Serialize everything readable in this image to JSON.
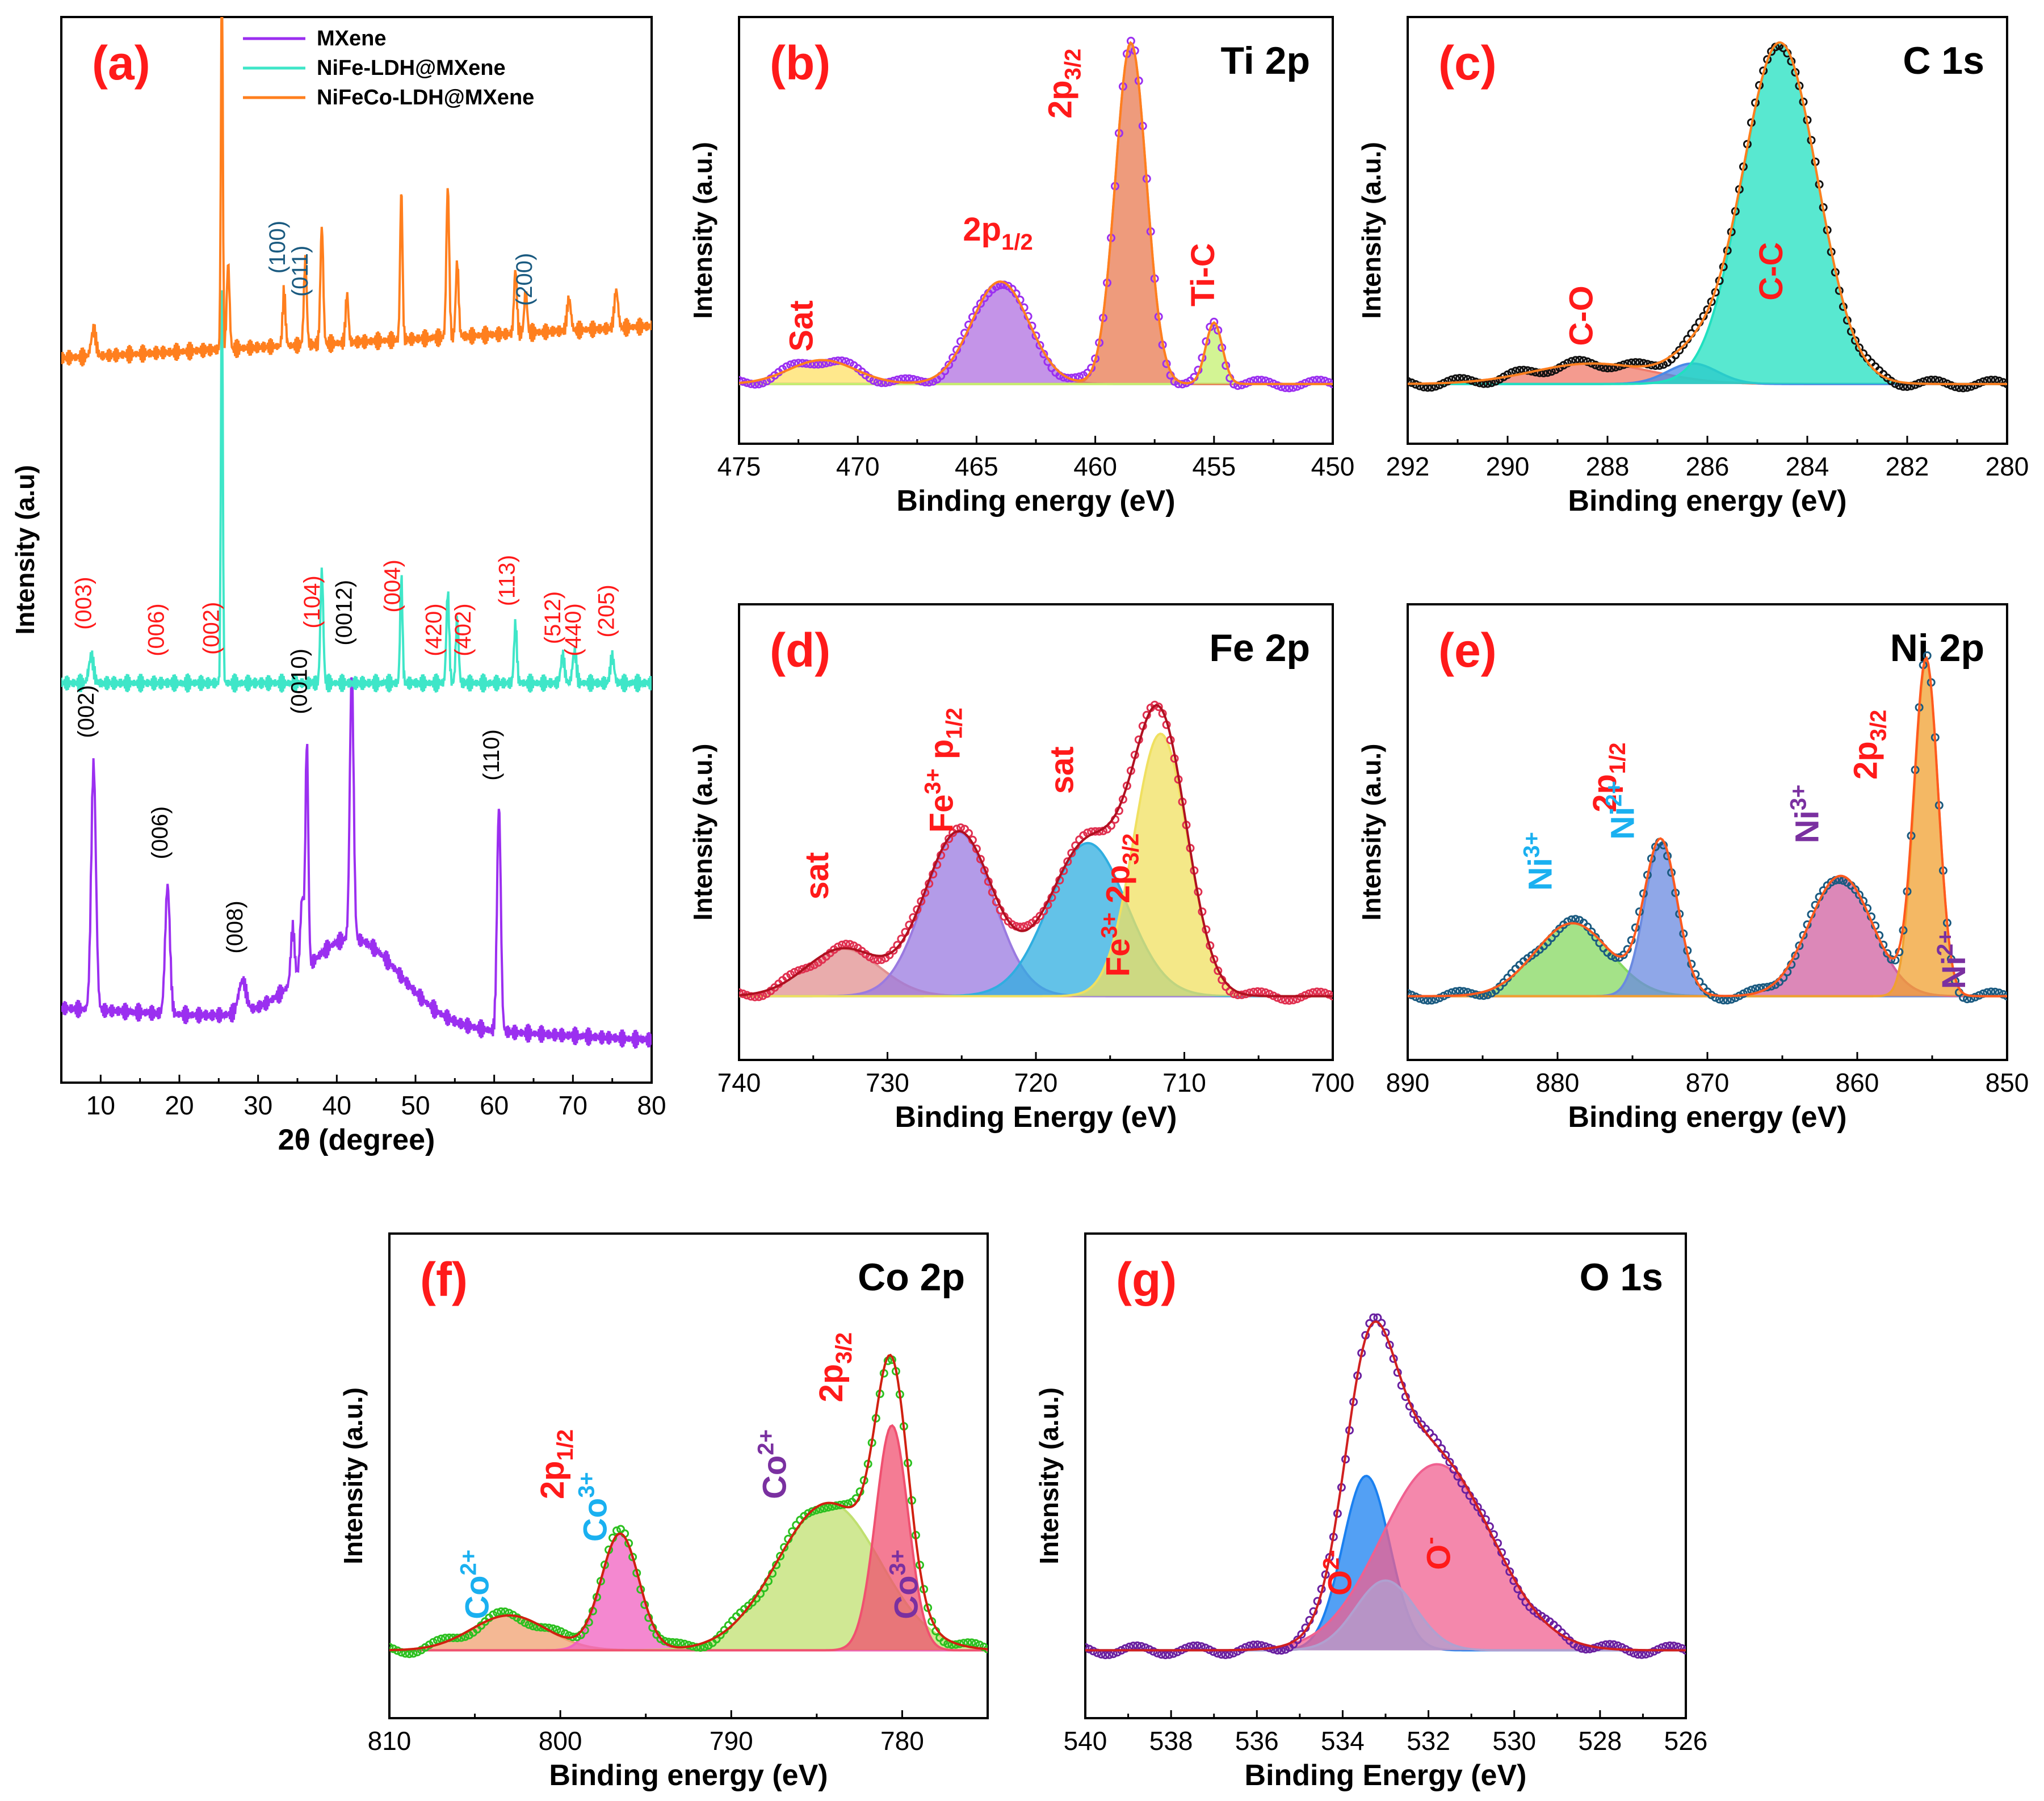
{
  "chart_data": [
    {
      "id": "a",
      "type": "line",
      "panel_label": "(a)",
      "xlabel": "2θ (degree)",
      "ylabel": "Intensity (a.u)",
      "xlim": [
        5,
        80
      ],
      "xticks": [
        "10",
        "20",
        "30",
        "40",
        "50",
        "60",
        "70",
        "80"
      ],
      "ylim": [
        0,
        10
      ],
      "legend": [
        {
          "name": "MXene",
          "color": "#9b2ff0"
        },
        {
          "name": "NiFe-LDH@MXene",
          "color": "#3fe6c8"
        },
        {
          "name": "NiFeCo-LDH@MXene",
          "color": "#ff7f1e"
        }
      ],
      "series": [
        {
          "name": "MXene",
          "color": "#9b2ff0",
          "baseline": 0.7,
          "slope": -0.004,
          "bump": {
            "x": 42,
            "h": 0.8,
            "w": 6
          },
          "peaks": [
            [
              9.1,
              2.3,
              0.5
            ],
            [
              18.5,
              1.2,
              0.5
            ],
            [
              28,
              0.3,
              0.8
            ],
            [
              34.4,
              0.5,
              0.4
            ],
            [
              35.6,
              0.7,
              0.4
            ],
            [
              36.2,
              2.1,
              0.3
            ],
            [
              41.9,
              2.5,
              0.4
            ],
            [
              60.6,
              2.1,
              0.4
            ]
          ],
          "labels": [
            {
              "x": 9.1,
              "text": "(002)"
            },
            {
              "x": 18.5,
              "text": "(006)"
            },
            {
              "x": 28.0,
              "text": "(008)"
            },
            {
              "x": 36.2,
              "text": "(0010)"
            },
            {
              "x": 41.9,
              "text": "(0012)"
            },
            {
              "x": 60.6,
              "text": "(110)"
            }
          ]
        },
        {
          "name": "NiFe-LDH@MXene",
          "color": "#3fe6c8",
          "baseline": 3.75,
          "slope": 0,
          "bump": null,
          "peaks": [
            [
              8.8,
              0.25,
              0.5
            ],
            [
              25.4,
              3.8,
              0.2
            ],
            [
              38.1,
              1.05,
              0.3
            ],
            [
              48.2,
              1.0,
              0.25
            ],
            [
              54.1,
              0.85,
              0.3
            ],
            [
              55.3,
              0.6,
              0.3
            ],
            [
              62.7,
              0.55,
              0.3
            ],
            [
              68.7,
              0.25,
              0.4
            ],
            [
              70.2,
              0.3,
              0.4
            ],
            [
              75.0,
              0.25,
              0.4
            ]
          ],
          "labels": [
            {
              "x": 8.8,
              "text": "(003)"
            },
            {
              "x": 18.0,
              "text": "(006)"
            },
            {
              "x": 25.0,
              "text": "(002)"
            },
            {
              "x": 37.8,
              "text": "(104)"
            },
            {
              "x": 48.0,
              "text": "(004)"
            },
            {
              "x": 53.3,
              "text": "(420)"
            },
            {
              "x": 57.0,
              "text": "(402)"
            },
            {
              "x": 62.6,
              "text": "(113)"
            },
            {
              "x": 68.4,
              "text": "(512)"
            },
            {
              "x": 71.0,
              "text": "(440)"
            },
            {
              "x": 75.2,
              "text": "(205)"
            }
          ]
        },
        {
          "name": "NiFeCo-LDH@MXene",
          "color": "#ff7f1e",
          "baseline": 6.8,
          "slope": 0.004,
          "bump": null,
          "peaks": [
            [
              9.1,
              0.25,
              0.5
            ],
            [
              25.4,
              3.5,
              0.2
            ],
            [
              26.2,
              0.8,
              0.3
            ],
            [
              33.3,
              0.5,
              0.3
            ],
            [
              36.0,
              0.8,
              0.3
            ],
            [
              38.1,
              1.1,
              0.3
            ],
            [
              41.3,
              0.45,
              0.3
            ],
            [
              48.2,
              1.4,
              0.25
            ],
            [
              54.1,
              1.4,
              0.3
            ],
            [
              55.3,
              0.7,
              0.3
            ],
            [
              62.7,
              0.6,
              0.3
            ],
            [
              64.0,
              0.4,
              0.3
            ],
            [
              69.5,
              0.3,
              0.4
            ],
            [
              75.5,
              0.35,
              0.4
            ]
          ],
          "labels": [
            {
              "x": 33.4,
              "text": "(100)"
            },
            {
              "x": 36.3,
              "text": "(011)"
            },
            {
              "x": 64.8,
              "text": "(200)"
            }
          ]
        }
      ]
    },
    {
      "id": "b",
      "type": "line",
      "panel_label": "(b)",
      "title": "Ti 2p",
      "xlabel": "Binding energy (eV)",
      "ylabel": "Intensity (a.u.)",
      "xlim": [
        475,
        450
      ],
      "xticks": [
        "475",
        "470",
        "465",
        "460",
        "455",
        "450"
      ],
      "baseline": 0.0,
      "data_color": "#9b2ff0",
      "envelope_color": "#ff7f1e",
      "components": [
        {
          "center": 471.5,
          "height": 0.07,
          "width": 1.4,
          "fill": "#ffe066"
        },
        {
          "center": 464.0,
          "height": 0.3,
          "width": 1.2,
          "fill": "#b070e0"
        },
        {
          "center": 458.5,
          "height": 1.0,
          "width": 0.65,
          "fill": "#e87a50"
        },
        {
          "center": 455.0,
          "height": 0.18,
          "width": 0.35,
          "fill": "#c4f070"
        }
      ],
      "annotations": [
        {
          "text": "Sat",
          "x": 471.9,
          "y": 0.17,
          "color": "#ff1a1a",
          "rotate": -90
        },
        {
          "text": "Ti-C",
          "x": 455.0,
          "y": 0.32,
          "color": "#ff1a1a",
          "rotate": -90
        }
      ],
      "subscripts": [
        {
          "main": "2p",
          "sub": "1/2",
          "x": 464.1,
          "y": 0.42,
          "color": "#ff1a1a",
          "rotate": 0
        },
        {
          "main": "2p",
          "sub": "3/2",
          "x": 461.0,
          "y": 0.88,
          "color": "#ff1a1a",
          "rotate": -90
        }
      ]
    },
    {
      "id": "c",
      "type": "line",
      "panel_label": "(c)",
      "title": "C 1s",
      "xlabel": "Binding energy (eV)",
      "ylabel": "Intensity (a.u.)",
      "xlim": [
        292,
        280
      ],
      "xticks": [
        "292",
        "290",
        "288",
        "286",
        "284",
        "282",
        "280"
      ],
      "baseline": 0.0,
      "data_color": "#111111",
      "envelope_color": "#ff7f1e",
      "components": [
        {
          "center": 288.3,
          "height": 0.06,
          "width": 1.2,
          "fill": "#f07a6a"
        },
        {
          "center": 286.3,
          "height": 0.06,
          "width": 0.5,
          "fill": "#4a8ae8"
        },
        {
          "center": 284.55,
          "height": 1.0,
          "width": 0.75,
          "fill": "#20e0c0"
        }
      ],
      "annotations": [
        {
          "text": "C-O",
          "x": 288.3,
          "y": 0.2,
          "color": "#ff1a1a",
          "rotate": -90
        },
        {
          "text": "C-C",
          "x": 284.5,
          "y": 0.33,
          "color": "#ff1a1a",
          "rotate": -90
        }
      ],
      "subscripts": []
    },
    {
      "id": "d",
      "type": "line",
      "panel_label": "(d)",
      "title": "Fe 2p",
      "xlabel": "Binding Energy (eV)",
      "ylabel": "Intensity (a.u.)",
      "xlim": [
        740,
        700
      ],
      "xticks": [
        "740",
        "730",
        "720",
        "710",
        "700"
      ],
      "baseline": 0.0,
      "data_color": "#e03050",
      "envelope_color": "#b01020",
      "components": [
        {
          "center": 733.0,
          "height": 0.13,
          "width": 2.5,
          "fill": "#e29090"
        },
        {
          "center": 725.2,
          "height": 0.45,
          "width": 2.3,
          "fill": "#9a7ae0"
        },
        {
          "center": 716.5,
          "height": 0.42,
          "width": 2.6,
          "fill": "#2faee0"
        },
        {
          "center": 711.6,
          "height": 0.72,
          "width": 1.8,
          "fill": "#f0e060"
        }
      ],
      "annotations": [
        {
          "text": "sat",
          "x": 734.0,
          "y": 0.33,
          "color": "#ff1a1a",
          "rotate": -90
        },
        {
          "text": "sat",
          "x": 717.5,
          "y": 0.62,
          "color": "#ff1a1a",
          "rotate": -90
        }
      ],
      "subscripts": [
        {
          "main": "Fe",
          "sub": "3+",
          "tail": " p",
          "sub2": "1/2",
          "x": 725.6,
          "y": 0.62,
          "color": "#ff1a1a",
          "rotate": -90
        },
        {
          "main": "Fe",
          "sub": "3+",
          "tail": " 2p",
          "sub2": "3/2",
          "x": 713.7,
          "y": 0.25,
          "color": "#ff1a1a",
          "rotate": -90
        }
      ]
    },
    {
      "id": "e",
      "type": "line",
      "panel_label": "(e)",
      "title": "Ni 2p",
      "xlabel": "Binding energy (eV)",
      "ylabel": "Intensity (a.u.)",
      "xlim": [
        890,
        850
      ],
      "xticks": [
        "890",
        "880",
        "870",
        "860",
        "850"
      ],
      "baseline": 0.0,
      "data_color": "#1a5a80",
      "envelope_color": "#ff5a1e",
      "components": [
        {
          "center": 879.0,
          "height": 0.2,
          "width": 2.5,
          "fill": "#86d860"
        },
        {
          "center": 873.1,
          "height": 0.42,
          "width": 1.1,
          "fill": "#6a8ae0"
        },
        {
          "center": 861.1,
          "height": 0.33,
          "width": 2.1,
          "fill": "#d060a0"
        },
        {
          "center": 855.4,
          "height": 0.92,
          "width": 0.8,
          "fill": "#f0a030"
        }
      ],
      "annotations": [],
      "subscripts": [
        {
          "main": "Ni",
          "sub": "3+",
          "x": 880.4,
          "y": 0.37,
          "color": "#1ab0f0",
          "rotate": -90
        },
        {
          "main": "2p",
          "sub": "1/2",
          "x": 876.1,
          "y": 0.6,
          "color": "#ff1a1a",
          "rotate": -90
        },
        {
          "main": "Ni",
          "sub": "2+",
          "x": 874.9,
          "y": 0.51,
          "color": "#1ab0f0",
          "rotate": -90
        },
        {
          "main": "Ni",
          "sub": "3+",
          "x": 862.6,
          "y": 0.5,
          "color": "#7a30a0",
          "rotate": -90
        },
        {
          "main": "2p",
          "sub": "3/2",
          "x": 858.7,
          "y": 0.69,
          "color": "#ff1a1a",
          "rotate": -90
        },
        {
          "main": "Ni",
          "sub": "2+",
          "x": 852.8,
          "y": 0.1,
          "color": "#7a30a0",
          "rotate": -90
        }
      ]
    },
    {
      "id": "f",
      "type": "line",
      "panel_label": "(f)",
      "title": "Co 2p",
      "xlabel": "Binding energy (eV)",
      "ylabel": "Intensity (a.u.)",
      "xlim": [
        810,
        775
      ],
      "xticks": [
        "810",
        "800",
        "790",
        "780"
      ],
      "baseline": 0.0,
      "data_color": "#2cc020",
      "envelope_color": "#d02010",
      "components": [
        {
          "center": 803.0,
          "height": 0.09,
          "width": 2.2,
          "fill": "#f0a070"
        },
        {
          "center": 796.5,
          "height": 0.3,
          "width": 1.1,
          "fill": "#f060c0"
        },
        {
          "center": 784.3,
          "height": 0.38,
          "width": 3.0,
          "fill": "#c0e070"
        },
        {
          "center": 780.6,
          "height": 0.58,
          "width": 0.95,
          "fill": "#f05070"
        }
      ],
      "annotations": [],
      "subscripts": [
        {
          "main": "Co",
          "sub": "2+",
          "x": 804.2,
          "y": 0.17,
          "color": "#1ab0f0",
          "rotate": -90
        },
        {
          "main": "2p",
          "sub": "1/2",
          "x": 799.8,
          "y": 0.48,
          "color": "#ff1a1a",
          "rotate": -90
        },
        {
          "main": "Co",
          "sub": "3+",
          "x": 797.3,
          "y": 0.37,
          "color": "#1ab0f0",
          "rotate": -90
        },
        {
          "main": "Co",
          "sub": "2+",
          "x": 786.8,
          "y": 0.48,
          "color": "#7a30a0",
          "rotate": -90
        },
        {
          "main": "2p",
          "sub": "3/2",
          "x": 783.5,
          "y": 0.73,
          "color": "#ff1a1a",
          "rotate": -90
        },
        {
          "main": "Co",
          "sub": "3+",
          "x": 779.1,
          "y": 0.17,
          "color": "#7a30a0",
          "rotate": -90
        }
      ]
    },
    {
      "id": "g",
      "type": "line",
      "panel_label": "(g)",
      "title": "O 1s",
      "xlabel": "Binding Energy (eV)",
      "ylabel": "Intensity (a.u.)",
      "xlim": [
        540,
        526
      ],
      "xticks": [
        "540",
        "538",
        "536",
        "534",
        "532",
        "530",
        "528",
        "526"
      ],
      "baseline": 0.0,
      "data_color": "#6a20a0",
      "envelope_color": "#d02020",
      "components": [
        {
          "center": 533.45,
          "height": 0.45,
          "width": 0.55,
          "fill": "#1a80f0"
        },
        {
          "center": 531.8,
          "height": 0.48,
          "width": 1.3,
          "fill": "#f06090"
        },
        {
          "center": 533.0,
          "height": 0.18,
          "width": 0.7,
          "fill": "#b0a0d0"
        }
      ],
      "annotations": [],
      "subscripts": [
        {
          "main": "O",
          "sub": "2-",
          "x": 533.8,
          "y": 0.2,
          "color": "#ff1a1a",
          "rotate": -90
        },
        {
          "main": "O",
          "sub": "-",
          "x": 531.5,
          "y": 0.25,
          "color": "#ff1a1a",
          "rotate": -90
        }
      ]
    }
  ]
}
